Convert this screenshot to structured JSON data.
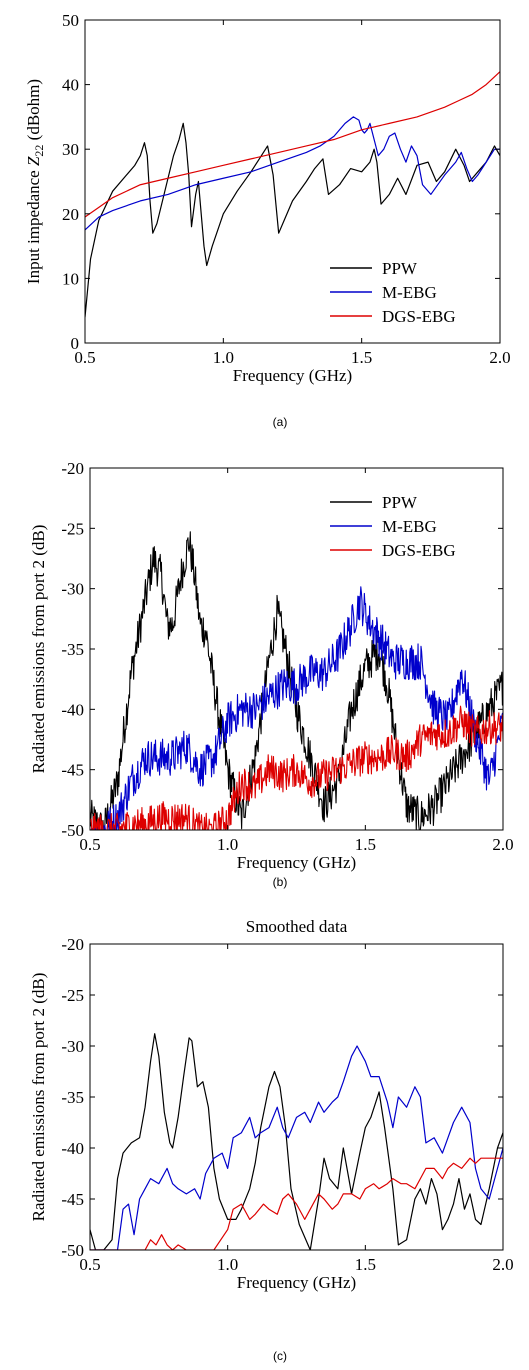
{
  "chart_data": [
    {
      "type": "line",
      "id": "a",
      "caption": "(a)",
      "title": "",
      "xlabel": "Frequency (GHz)",
      "ylabel_main": "Input impedance ",
      "ylabel_sym": "Z",
      "ylabel_sub": "22",
      "ylabel_unit": " (dBohm)",
      "xlim": [
        0.5,
        2.0
      ],
      "ylim": [
        0,
        50
      ],
      "xticks": [
        0.5,
        1.0,
        1.5,
        2.0
      ],
      "xtick_labels": [
        "0.5",
        "1.0",
        "1.5",
        "2.0"
      ],
      "yticks": [
        0,
        10,
        20,
        30,
        40,
        50
      ],
      "ytick_labels": [
        "0",
        "10",
        "20",
        "30",
        "40",
        "50"
      ],
      "legend_position": "bottom-right",
      "series": [
        {
          "name": "PPW",
          "color": "#000000",
          "x": [
            0.5,
            0.52,
            0.55,
            0.6,
            0.65,
            0.68,
            0.7,
            0.715,
            0.725,
            0.735,
            0.745,
            0.76,
            0.78,
            0.8,
            0.82,
            0.84,
            0.855,
            0.865,
            0.875,
            0.885,
            0.9,
            0.91,
            0.92,
            0.93,
            0.94,
            0.96,
            1.0,
            1.05,
            1.1,
            1.13,
            1.16,
            1.18,
            1.2,
            1.22,
            1.25,
            1.3,
            1.33,
            1.36,
            1.38,
            1.42,
            1.46,
            1.5,
            1.53,
            1.545,
            1.555,
            1.57,
            1.6,
            1.63,
            1.66,
            1.7,
            1.74,
            1.77,
            1.8,
            1.84,
            1.87,
            1.89,
            1.92,
            1.95,
            1.98,
            2.0
          ],
          "y": [
            4,
            13,
            19,
            23.5,
            26,
            27.5,
            29,
            31,
            29,
            22,
            17,
            18.5,
            22,
            25.5,
            29,
            31.5,
            34,
            31,
            26,
            18,
            23,
            25,
            20,
            15,
            12,
            15,
            20,
            23.5,
            26.5,
            28.5,
            30.5,
            26,
            17,
            19,
            22,
            25,
            27,
            28.5,
            23,
            24.5,
            27,
            26.5,
            28,
            30,
            28,
            21.5,
            23,
            25.5,
            23,
            27.5,
            28,
            25,
            26.5,
            30,
            27.5,
            25,
            26.5,
            28,
            30.5,
            29
          ]
        },
        {
          "name": "M-EBG",
          "color": "#0000cc",
          "x": [
            0.5,
            0.55,
            0.6,
            0.7,
            0.8,
            0.9,
            1.0,
            1.1,
            1.2,
            1.3,
            1.35,
            1.4,
            1.44,
            1.47,
            1.49,
            1.5,
            1.51,
            1.52,
            1.53,
            1.56,
            1.58,
            1.6,
            1.62,
            1.64,
            1.66,
            1.68,
            1.7,
            1.72,
            1.75,
            1.8,
            1.84,
            1.86,
            1.88,
            1.9,
            1.92,
            1.95,
            1.98,
            2.0
          ],
          "y": [
            17.5,
            19.5,
            20.5,
            22,
            23,
            24.5,
            25.5,
            26.5,
            28,
            29.5,
            30.5,
            32,
            34,
            35,
            34.5,
            33,
            32.5,
            33,
            34,
            29,
            30,
            32,
            32.5,
            30,
            28,
            30.5,
            29,
            24.5,
            23,
            26,
            28,
            29.5,
            27,
            25,
            26,
            28,
            30,
            30
          ]
        },
        {
          "name": "DGS-EBG",
          "color": "#dd0000",
          "x": [
            0.5,
            0.55,
            0.6,
            0.7,
            0.8,
            0.9,
            1.0,
            1.1,
            1.2,
            1.3,
            1.4,
            1.5,
            1.6,
            1.7,
            1.8,
            1.85,
            1.9,
            1.95,
            2.0
          ],
          "y": [
            19.5,
            21,
            22.5,
            24.5,
            25.5,
            26.5,
            27.5,
            28.5,
            29.5,
            30.5,
            31.5,
            33,
            34,
            35,
            36.5,
            37.5,
            38.5,
            40,
            42
          ]
        }
      ]
    },
    {
      "type": "line",
      "id": "b",
      "caption": "(b)",
      "title": "",
      "xlabel": "Frequency (GHz)",
      "ylabel": "Radiated emissions from port 2 (dB)",
      "xlim": [
        0.5,
        2.0
      ],
      "ylim": [
        -50,
        -20
      ],
      "xticks": [
        0.5,
        1.0,
        1.5,
        2.0
      ],
      "xtick_labels": [
        "0.5",
        "1.0",
        "1.5",
        "2.0"
      ],
      "yticks": [
        -50,
        -45,
        -40,
        -35,
        -30,
        -25,
        -20
      ],
      "ytick_labels": [
        "-50",
        "-45",
        "-40",
        "-35",
        "-30",
        "-25",
        "-20"
      ],
      "legend_position": "top-right",
      "noise": true,
      "series": [
        {
          "name": "PPW",
          "color": "#000000",
          "noise_amp": 1.6,
          "x": [
            0.5,
            0.55,
            0.6,
            0.65,
            0.7,
            0.73,
            0.76,
            0.78,
            0.8,
            0.83,
            0.86,
            0.88,
            0.9,
            0.92,
            0.95,
            1.0,
            1.05,
            1.1,
            1.15,
            1.18,
            1.21,
            1.25,
            1.3,
            1.35,
            1.4,
            1.45,
            1.5,
            1.55,
            1.58,
            1.62,
            1.65,
            1.7,
            1.75,
            1.8,
            1.85,
            1.9,
            1.95,
            2.0
          ],
          "y": [
            -49,
            -50,
            -46,
            -37,
            -31,
            -27.5,
            -29,
            -33,
            -33,
            -29,
            -26,
            -29,
            -33,
            -33.5,
            -38,
            -45,
            -49,
            -44,
            -36,
            -32,
            -35,
            -40,
            -44,
            -48,
            -46,
            -40,
            -36.5,
            -35,
            -38,
            -44,
            -48,
            -49,
            -48,
            -46,
            -44,
            -42,
            -40,
            -38
          ]
        },
        {
          "name": "M-EBG",
          "color": "#0000cc",
          "noise_amp": 1.6,
          "x": [
            0.5,
            0.55,
            0.6,
            0.65,
            0.7,
            0.75,
            0.8,
            0.85,
            0.9,
            0.95,
            1.0,
            1.05,
            1.1,
            1.15,
            1.2,
            1.25,
            1.3,
            1.35,
            1.4,
            1.45,
            1.48,
            1.52,
            1.55,
            1.6,
            1.65,
            1.7,
            1.75,
            1.8,
            1.85,
            1.9,
            1.95,
            2.0
          ],
          "y": [
            -50,
            -50,
            -49,
            -46,
            -44,
            -44,
            -44,
            -43,
            -45,
            -44,
            -41,
            -40,
            -40,
            -39,
            -38,
            -38,
            -37,
            -37,
            -35.5,
            -33,
            -31,
            -33,
            -34,
            -36,
            -36,
            -36,
            -40,
            -41,
            -37,
            -42,
            -46,
            -41
          ]
        },
        {
          "name": "DGS-EBG",
          "color": "#dd0000",
          "noise_amp": 1.4,
          "x": [
            0.5,
            0.6,
            0.65,
            0.7,
            0.75,
            0.8,
            0.85,
            0.9,
            0.95,
            1.0,
            1.05,
            1.1,
            1.15,
            1.2,
            1.25,
            1.3,
            1.35,
            1.4,
            1.45,
            1.5,
            1.55,
            1.6,
            1.65,
            1.7,
            1.75,
            1.8,
            1.85,
            1.9,
            1.95,
            2.0
          ],
          "y": [
            -50,
            -50,
            -49.5,
            -49.5,
            -49,
            -49,
            -49,
            -50,
            -50,
            -49,
            -46,
            -46.5,
            -45,
            -45.5,
            -45,
            -46,
            -45.5,
            -45,
            -44.5,
            -44,
            -44,
            -43.5,
            -44,
            -42.5,
            -42,
            -42,
            -41,
            -42,
            -41.5,
            -41.5
          ]
        }
      ]
    },
    {
      "type": "line",
      "id": "c",
      "caption": "(c)",
      "title": "Smoothed data",
      "xlabel": "Frequency (GHz)",
      "ylabel": "Radiated emissions from port 2 (dB)",
      "xlim": [
        0.5,
        2.0
      ],
      "ylim": [
        -50,
        -20
      ],
      "xticks": [
        0.5,
        1.0,
        1.5,
        2.0
      ],
      "xtick_labels": [
        "0.5",
        "1.0",
        "1.5",
        "2.0"
      ],
      "yticks": [
        -50,
        -45,
        -40,
        -35,
        -30,
        -25,
        -20
      ],
      "ytick_labels": [
        "-50",
        "-45",
        "-40",
        "-35",
        "-30",
        "-25",
        "-20"
      ],
      "legend_position": "none",
      "noise": false,
      "series": [
        {
          "name": "PPW",
          "color": "#000000",
          "x": [
            0.5,
            0.52,
            0.55,
            0.58,
            0.6,
            0.62,
            0.65,
            0.68,
            0.7,
            0.72,
            0.735,
            0.75,
            0.77,
            0.79,
            0.8,
            0.82,
            0.84,
            0.86,
            0.87,
            0.89,
            0.91,
            0.93,
            0.95,
            0.97,
            1.0,
            1.03,
            1.05,
            1.08,
            1.1,
            1.12,
            1.15,
            1.17,
            1.19,
            1.21,
            1.23,
            1.26,
            1.3,
            1.33,
            1.35,
            1.37,
            1.4,
            1.42,
            1.45,
            1.48,
            1.5,
            1.52,
            1.55,
            1.57,
            1.6,
            1.62,
            1.65,
            1.68,
            1.7,
            1.72,
            1.74,
            1.76,
            1.78,
            1.8,
            1.82,
            1.84,
            1.86,
            1.88,
            1.9,
            1.92,
            1.95,
            1.98,
            2.0
          ],
          "y": [
            -48,
            -50,
            -50,
            -49,
            -43,
            -40.5,
            -39.5,
            -39,
            -36,
            -31.5,
            -28.8,
            -31,
            -36.5,
            -39.5,
            -40,
            -37,
            -33,
            -29.2,
            -29.5,
            -34,
            -33.5,
            -36,
            -42,
            -45,
            -47,
            -47,
            -46,
            -44,
            -41.5,
            -38,
            -34,
            -32.5,
            -34,
            -38,
            -44,
            -47.5,
            -50,
            -45,
            -41,
            -43,
            -44,
            -40,
            -44.5,
            -40.5,
            -38,
            -37,
            -34.5,
            -38,
            -44,
            -49.5,
            -49,
            -45,
            -44,
            -45.5,
            -43,
            -44.5,
            -48,
            -47,
            -45.5,
            -43,
            -46,
            -44.5,
            -47,
            -47.5,
            -44,
            -40,
            -38.5
          ]
        },
        {
          "name": "M-EBG",
          "color": "#0000cc",
          "x": [
            0.5,
            0.6,
            0.62,
            0.64,
            0.66,
            0.68,
            0.7,
            0.72,
            0.75,
            0.78,
            0.8,
            0.82,
            0.85,
            0.88,
            0.9,
            0.92,
            0.95,
            0.98,
            1.0,
            1.02,
            1.05,
            1.08,
            1.1,
            1.12,
            1.15,
            1.18,
            1.2,
            1.22,
            1.25,
            1.28,
            1.3,
            1.33,
            1.35,
            1.38,
            1.4,
            1.42,
            1.45,
            1.47,
            1.5,
            1.52,
            1.55,
            1.58,
            1.6,
            1.62,
            1.65,
            1.68,
            1.7,
            1.72,
            1.75,
            1.78,
            1.8,
            1.82,
            1.85,
            1.88,
            1.9,
            1.92,
            1.95,
            1.98,
            2.0
          ],
          "y": [
            -50,
            -50,
            -46,
            -45.5,
            -48.5,
            -45,
            -44,
            -43,
            -43.5,
            -42,
            -43.5,
            -44,
            -44.5,
            -44,
            -45,
            -42.5,
            -41,
            -40.5,
            -42,
            -39,
            -38.5,
            -37,
            -39,
            -38.5,
            -38,
            -36,
            -38,
            -39,
            -37,
            -36.5,
            -37.5,
            -35.5,
            -36.5,
            -35.5,
            -35,
            -33.5,
            -31,
            -30,
            -31.5,
            -33,
            -33,
            -35.5,
            -38,
            -35,
            -36,
            -34,
            -35,
            -39.5,
            -39,
            -40.5,
            -39,
            -37.5,
            -36,
            -37.5,
            -42,
            -44,
            -45,
            -42,
            -40
          ]
        },
        {
          "name": "DGS-EBG",
          "color": "#dd0000",
          "x": [
            0.5,
            0.6,
            0.65,
            0.7,
            0.72,
            0.74,
            0.76,
            0.78,
            0.8,
            0.82,
            0.85,
            0.88,
            0.9,
            0.95,
            1.0,
            1.02,
            1.05,
            1.08,
            1.1,
            1.13,
            1.15,
            1.18,
            1.2,
            1.22,
            1.25,
            1.28,
            1.3,
            1.33,
            1.35,
            1.38,
            1.4,
            1.42,
            1.45,
            1.48,
            1.5,
            1.53,
            1.55,
            1.58,
            1.6,
            1.63,
            1.65,
            1.68,
            1.7,
            1.72,
            1.75,
            1.78,
            1.8,
            1.82,
            1.85,
            1.88,
            1.9,
            1.92,
            1.95,
            1.98,
            2.0
          ],
          "y": [
            -50,
            -50,
            -50,
            -50,
            -49,
            -49.5,
            -48.5,
            -49.5,
            -50,
            -49.5,
            -50,
            -50,
            -50,
            -50,
            -48,
            -46,
            -45.5,
            -47,
            -46.5,
            -45.5,
            -46,
            -46.5,
            -45,
            -44.5,
            -45.5,
            -47,
            -46,
            -44.5,
            -45,
            -46,
            -45.5,
            -44.5,
            -44.5,
            -45,
            -44,
            -43.5,
            -44,
            -43.5,
            -43,
            -43.5,
            -43.5,
            -44,
            -43,
            -42,
            -42,
            -43,
            -42,
            -41.5,
            -42,
            -41,
            -41.5,
            -41,
            -41,
            -41,
            -41
          ]
        }
      ]
    }
  ]
}
